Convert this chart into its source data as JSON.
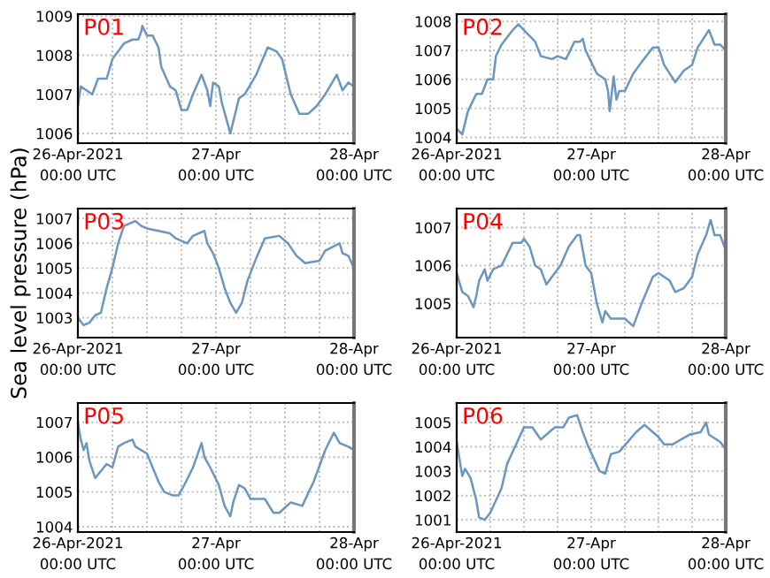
{
  "chart_data": [
    {
      "type": "line",
      "title": "P01",
      "xlim": [
        "2021-04-26T00:00",
        "2021-04-28T00:00"
      ],
      "ylim": [
        1005.75,
        1009.05
      ],
      "yticks": [
        1006,
        1007,
        1008,
        1009
      ],
      "grid": true,
      "xticks": [
        {
          "value": "2021-04-26T00:00",
          "label": "26-Apr-2021\n00:00 UTC"
        },
        {
          "value": "2021-04-26T06:00",
          "label": null
        },
        {
          "value": "2021-04-26T12:00",
          "label": null
        },
        {
          "value": "2021-04-26T18:00",
          "label": null
        },
        {
          "value": "2021-04-27T00:00",
          "label": "27-Apr\n00:00 UTC"
        },
        {
          "value": "2021-04-27T06:00",
          "label": null
        },
        {
          "value": "2021-04-27T12:00",
          "label": null
        },
        {
          "value": "2021-04-27T18:00",
          "label": null
        },
        {
          "value": "2021-04-28T00:00",
          "label": "28-Apr\n00:00 UTC"
        }
      ],
      "series": [
        {
          "color": "#6a96c0",
          "x": [
            "2021-04-26T00:00",
            "2021-04-26T00:30",
            "2021-04-26T01:30",
            "2021-04-26T02:30",
            "2021-04-26T03:30",
            "2021-04-26T05:00",
            "2021-04-26T06:00",
            "2021-04-26T08:00",
            "2021-04-26T09:30",
            "2021-04-26T10:30",
            "2021-04-26T11:00",
            "2021-04-26T11:12",
            "2021-04-26T12:00",
            "2021-04-26T13:00",
            "2021-04-26T14:00",
            "2021-04-26T14:30",
            "2021-04-26T16:00",
            "2021-04-26T17:00",
            "2021-04-26T18:00",
            "2021-04-26T19:00",
            "2021-04-26T20:00",
            "2021-04-26T21:30",
            "2021-04-26T22:30",
            "2021-04-26T23:00",
            "2021-04-26T23:30",
            "2021-04-27T00:30",
            "2021-04-27T01:00",
            "2021-04-27T02:30",
            "2021-04-27T04:00",
            "2021-04-27T05:00",
            "2021-04-27T07:00",
            "2021-04-27T09:00",
            "2021-04-27T10:30",
            "2021-04-27T11:30",
            "2021-04-27T13:00",
            "2021-04-27T14:30",
            "2021-04-27T16:00",
            "2021-04-27T17:30",
            "2021-04-27T19:00",
            "2021-04-27T21:00",
            "2021-04-27T22:00",
            "2021-04-27T23:00",
            "2021-04-28T00:00"
          ],
          "values": [
            1006.7,
            1007.2,
            1007.1,
            1007.0,
            1007.4,
            1007.4,
            1007.9,
            1008.3,
            1008.4,
            1008.4,
            1008.6,
            1008.75,
            1008.5,
            1008.5,
            1008.2,
            1007.7,
            1007.2,
            1007.1,
            1006.6,
            1006.6,
            1007.0,
            1007.5,
            1007.1,
            1006.7,
            1007.3,
            1007.2,
            1006.8,
            1006.0,
            1006.9,
            1007.0,
            1007.5,
            1008.2,
            1008.1,
            1007.9,
            1007.0,
            1006.5,
            1006.5,
            1006.7,
            1007.0,
            1007.5,
            1007.1,
            1007.3,
            1007.2
          ]
        }
      ]
    },
    {
      "type": "line",
      "title": "P02",
      "xlim": [
        "2021-04-26T00:00",
        "2021-04-28T00:00"
      ],
      "ylim": [
        1003.8,
        1008.25
      ],
      "yticks": [
        1004,
        1005,
        1006,
        1007,
        1008
      ],
      "grid": true,
      "xticks": [
        {
          "value": "2021-04-26T00:00",
          "label": "26-Apr-2021\n00:00 UTC"
        },
        {
          "value": "2021-04-26T06:00",
          "label": null
        },
        {
          "value": "2021-04-26T12:00",
          "label": null
        },
        {
          "value": "2021-04-26T18:00",
          "label": null
        },
        {
          "value": "2021-04-27T00:00",
          "label": "27-Apr\n00:00 UTC"
        },
        {
          "value": "2021-04-27T06:00",
          "label": null
        },
        {
          "value": "2021-04-27T12:00",
          "label": null
        },
        {
          "value": "2021-04-27T18:00",
          "label": null
        },
        {
          "value": "2021-04-28T00:00",
          "label": "28-Apr\n00:00 UTC"
        }
      ],
      "series": [
        {
          "color": "#6a96c0",
          "x": [
            "2021-04-26T00:00",
            "2021-04-26T01:00",
            "2021-04-26T02:00",
            "2021-04-26T03:30",
            "2021-04-26T04:30",
            "2021-04-26T05:30",
            "2021-04-26T06:30",
            "2021-04-26T07:00",
            "2021-04-26T08:00",
            "2021-04-26T10:00",
            "2021-04-26T11:00",
            "2021-04-26T12:00",
            "2021-04-26T13:00",
            "2021-04-26T14:00",
            "2021-04-26T15:00",
            "2021-04-26T17:00",
            "2021-04-26T18:00",
            "2021-04-26T19:30",
            "2021-04-26T21:00",
            "2021-04-26T22:00",
            "2021-04-26T22:30",
            "2021-04-26T23:00",
            "2021-04-27T00:00",
            "2021-04-27T01:00",
            "2021-04-27T02:30",
            "2021-04-27T03:00",
            "2021-04-27T03:18",
            "2021-04-27T04:00",
            "2021-04-27T04:30",
            "2021-04-27T05:00",
            "2021-04-27T06:00",
            "2021-04-27T07:30",
            "2021-04-27T09:00",
            "2021-04-27T11:00",
            "2021-04-27T12:00",
            "2021-04-27T13:00",
            "2021-04-27T15:00",
            "2021-04-27T16:30",
            "2021-04-27T18:00",
            "2021-04-27T19:00",
            "2021-04-27T20:00",
            "2021-04-27T21:00",
            "2021-04-27T22:00",
            "2021-04-27T23:00",
            "2021-04-28T00:00"
          ],
          "values": [
            1004.3,
            1004.1,
            1004.9,
            1005.5,
            1005.5,
            1006.0,
            1006.0,
            1006.8,
            1007.2,
            1007.7,
            1007.9,
            1007.7,
            1007.5,
            1007.3,
            1006.8,
            1006.7,
            1006.8,
            1006.7,
            1007.3,
            1007.3,
            1007.4,
            1007.0,
            1006.6,
            1006.2,
            1006.0,
            1005.6,
            1004.9,
            1006.1,
            1005.3,
            1005.6,
            1005.6,
            1006.2,
            1006.6,
            1007.1,
            1007.1,
            1006.5,
            1005.9,
            1006.3,
            1006.5,
            1007.1,
            1007.4,
            1007.7,
            1007.2,
            1007.2,
            1007.0
          ]
        }
      ]
    },
    {
      "type": "line",
      "title": "P03",
      "ylabel": "Sea level pressure (hPa)",
      "xlim": [
        "2021-04-26T00:00",
        "2021-04-28T00:00"
      ],
      "ylim": [
        1002.2,
        1007.4
      ],
      "yticks": [
        1003,
        1004,
        1005,
        1006,
        1007
      ],
      "grid": true,
      "xticks": [
        {
          "value": "2021-04-26T00:00",
          "label": "26-Apr-2021\n00:00 UTC"
        },
        {
          "value": "2021-04-26T06:00",
          "label": null
        },
        {
          "value": "2021-04-26T12:00",
          "label": null
        },
        {
          "value": "2021-04-26T18:00",
          "label": null
        },
        {
          "value": "2021-04-27T00:00",
          "label": "27-Apr\n00:00 UTC"
        },
        {
          "value": "2021-04-27T06:00",
          "label": null
        },
        {
          "value": "2021-04-27T12:00",
          "label": null
        },
        {
          "value": "2021-04-27T18:00",
          "label": null
        },
        {
          "value": "2021-04-28T00:00",
          "label": "28-Apr\n00:00 UTC"
        }
      ],
      "series": [
        {
          "color": "#6a96c0",
          "x": [
            "2021-04-26T00:00",
            "2021-04-26T01:00",
            "2021-04-26T02:00",
            "2021-04-26T03:00",
            "2021-04-26T04:00",
            "2021-04-26T05:00",
            "2021-04-26T06:00",
            "2021-04-26T07:00",
            "2021-04-26T08:00",
            "2021-04-26T09:00",
            "2021-04-26T10:00",
            "2021-04-26T11:00",
            "2021-04-26T12:00",
            "2021-04-26T14:00",
            "2021-04-26T16:00",
            "2021-04-26T17:00",
            "2021-04-26T19:00",
            "2021-04-26T20:00",
            "2021-04-26T22:00",
            "2021-04-26T22:30",
            "2021-04-26T23:30",
            "2021-04-27T00:30",
            "2021-04-27T01:30",
            "2021-04-27T02:30",
            "2021-04-27T03:30",
            "2021-04-27T04:30",
            "2021-04-27T05:30",
            "2021-04-27T07:00",
            "2021-04-27T08:30",
            "2021-04-27T11:00",
            "2021-04-27T12:30",
            "2021-04-27T14:00",
            "2021-04-27T15:30",
            "2021-04-27T18:00",
            "2021-04-27T19:00",
            "2021-04-27T21:30",
            "2021-04-27T22:00",
            "2021-04-27T23:00",
            "2021-04-28T00:00"
          ],
          "values": [
            1003.0,
            1002.7,
            1002.8,
            1003.1,
            1003.2,
            1004.2,
            1005.0,
            1006.0,
            1006.7,
            1006.8,
            1006.9,
            1006.7,
            1006.6,
            1006.5,
            1006.4,
            1006.2,
            1006.0,
            1006.3,
            1006.5,
            1006.0,
            1005.6,
            1005.0,
            1004.2,
            1003.6,
            1003.2,
            1003.6,
            1004.5,
            1005.4,
            1006.2,
            1006.3,
            1006.0,
            1005.5,
            1005.2,
            1005.3,
            1005.7,
            1006.0,
            1005.6,
            1005.5,
            1005.0
          ]
        }
      ]
    },
    {
      "type": "line",
      "title": "P04",
      "xlim": [
        "2021-04-26T00:00",
        "2021-04-28T00:00"
      ],
      "ylim": [
        1004.1,
        1007.5
      ],
      "yticks": [
        1005,
        1006,
        1007
      ],
      "grid": true,
      "xticks": [
        {
          "value": "2021-04-26T00:00",
          "label": "26-Apr-2021\n00:00 UTC"
        },
        {
          "value": "2021-04-26T06:00",
          "label": null
        },
        {
          "value": "2021-04-26T12:00",
          "label": null
        },
        {
          "value": "2021-04-26T18:00",
          "label": null
        },
        {
          "value": "2021-04-27T00:00",
          "label": "27-Apr\n00:00 UTC"
        },
        {
          "value": "2021-04-27T06:00",
          "label": null
        },
        {
          "value": "2021-04-27T12:00",
          "label": null
        },
        {
          "value": "2021-04-27T18:00",
          "label": null
        },
        {
          "value": "2021-04-28T00:00",
          "label": "28-Apr\n00:00 UTC"
        }
      ],
      "series": [
        {
          "color": "#6a96c0",
          "x": [
            "2021-04-26T00:00",
            "2021-04-26T01:00",
            "2021-04-26T02:00",
            "2021-04-26T03:00",
            "2021-04-26T03:30",
            "2021-04-26T04:00",
            "2021-04-26T05:00",
            "2021-04-26T05:30",
            "2021-04-26T06:30",
            "2021-04-26T08:00",
            "2021-04-26T09:00",
            "2021-04-26T10:00",
            "2021-04-26T11:30",
            "2021-04-26T12:00",
            "2021-04-26T13:00",
            "2021-04-26T14:00",
            "2021-04-26T15:00",
            "2021-04-26T16:00",
            "2021-04-26T17:00",
            "2021-04-26T18:30",
            "2021-04-26T20:00",
            "2021-04-26T21:30",
            "2021-04-26T22:00",
            "2021-04-26T23:00",
            "2021-04-27T00:00",
            "2021-04-27T01:00",
            "2021-04-27T02:00",
            "2021-04-27T02:30",
            "2021-04-27T03:30",
            "2021-04-27T04:30",
            "2021-04-27T06:00",
            "2021-04-27T07:30",
            "2021-04-27T09:00",
            "2021-04-27T11:00",
            "2021-04-27T12:00",
            "2021-04-27T14:00",
            "2021-04-27T15:00",
            "2021-04-27T16:30",
            "2021-04-27T18:00",
            "2021-04-27T19:00",
            "2021-04-27T20:30",
            "2021-04-27T21:18",
            "2021-04-27T22:00",
            "2021-04-27T23:00",
            "2021-04-28T00:00"
          ],
          "values": [
            1005.8,
            1005.3,
            1005.2,
            1004.9,
            1005.2,
            1005.6,
            1005.9,
            1005.6,
            1005.9,
            1006.0,
            1006.3,
            1006.6,
            1006.6,
            1006.7,
            1006.5,
            1006.0,
            1005.9,
            1005.5,
            1005.7,
            1006.0,
            1006.5,
            1006.8,
            1006.8,
            1006.0,
            1005.8,
            1005.0,
            1004.5,
            1004.8,
            1004.6,
            1004.6,
            1004.6,
            1004.4,
            1005.0,
            1005.7,
            1005.8,
            1005.6,
            1005.3,
            1005.4,
            1005.7,
            1006.3,
            1006.8,
            1007.2,
            1006.8,
            1006.8,
            1006.4
          ]
        }
      ]
    },
    {
      "type": "line",
      "title": "P05",
      "xlim": [
        "2021-04-26T00:00",
        "2021-04-28T00:00"
      ],
      "ylim": [
        1003.85,
        1007.55
      ],
      "yticks": [
        1004,
        1005,
        1006,
        1007
      ],
      "grid": true,
      "xticks": [
        {
          "value": "2021-04-26T00:00",
          "label": "26-Apr-2021\n00:00 UTC"
        },
        {
          "value": "2021-04-26T06:00",
          "label": null
        },
        {
          "value": "2021-04-26T12:00",
          "label": null
        },
        {
          "value": "2021-04-26T18:00",
          "label": null
        },
        {
          "value": "2021-04-27T00:00",
          "label": "27-Apr\n00:00 UTC"
        },
        {
          "value": "2021-04-27T06:00",
          "label": null
        },
        {
          "value": "2021-04-27T12:00",
          "label": null
        },
        {
          "value": "2021-04-27T18:00",
          "label": null
        },
        {
          "value": "2021-04-28T00:00",
          "label": "28-Apr\n00:00 UTC"
        }
      ],
      "series": [
        {
          "color": "#6a96c0",
          "x": [
            "2021-04-26T00:00",
            "2021-04-26T00:30",
            "2021-04-26T01:00",
            "2021-04-26T01:30",
            "2021-04-26T02:00",
            "2021-04-26T03:00",
            "2021-04-26T04:00",
            "2021-04-26T05:00",
            "2021-04-26T06:00",
            "2021-04-26T07:00",
            "2021-04-26T08:00",
            "2021-04-26T09:30",
            "2021-04-26T10:00",
            "2021-04-26T12:00",
            "2021-04-26T13:00",
            "2021-04-26T14:00",
            "2021-04-26T15:00",
            "2021-04-26T16:30",
            "2021-04-26T17:30",
            "2021-04-26T18:30",
            "2021-04-26T20:00",
            "2021-04-26T21:30",
            "2021-04-26T22:00",
            "2021-04-26T23:00",
            "2021-04-27T00:30",
            "2021-04-27T01:30",
            "2021-04-27T02:30",
            "2021-04-27T03:00",
            "2021-04-27T04:00",
            "2021-04-27T05:00",
            "2021-04-27T06:00",
            "2021-04-27T07:00",
            "2021-04-27T08:30",
            "2021-04-27T10:00",
            "2021-04-27T11:00",
            "2021-04-27T13:00",
            "2021-04-27T15:00",
            "2021-04-27T17:00",
            "2021-04-27T19:00",
            "2021-04-27T20:30",
            "2021-04-27T21:30",
            "2021-04-27T23:00",
            "2021-04-28T00:00"
          ],
          "values": [
            1007.0,
            1006.5,
            1006.2,
            1006.4,
            1005.9,
            1005.4,
            1005.6,
            1005.8,
            1005.7,
            1006.3,
            1006.4,
            1006.5,
            1006.3,
            1006.1,
            1005.7,
            1005.3,
            1005.0,
            1004.9,
            1004.9,
            1005.2,
            1005.7,
            1006.4,
            1006.0,
            1005.7,
            1005.2,
            1004.6,
            1004.3,
            1004.7,
            1005.2,
            1005.1,
            1004.8,
            1004.8,
            1004.8,
            1004.4,
            1004.4,
            1004.7,
            1004.6,
            1005.3,
            1006.2,
            1006.7,
            1006.4,
            1006.3,
            1006.2
          ]
        }
      ]
    },
    {
      "type": "line",
      "title": "P06",
      "xlim": [
        "2021-04-26T00:00",
        "2021-04-28T00:00"
      ],
      "ylim": [
        1000.5,
        1005.8
      ],
      "yticks": [
        1001,
        1002,
        1003,
        1004,
        1005
      ],
      "grid": true,
      "xticks": [
        {
          "value": "2021-04-26T00:00",
          "label": "26-Apr-2021\n00:00 UTC"
        },
        {
          "value": "2021-04-26T06:00",
          "label": null
        },
        {
          "value": "2021-04-26T12:00",
          "label": null
        },
        {
          "value": "2021-04-26T18:00",
          "label": null
        },
        {
          "value": "2021-04-27T00:00",
          "label": "27-Apr\n00:00 UTC"
        },
        {
          "value": "2021-04-27T06:00",
          "label": null
        },
        {
          "value": "2021-04-27T12:00",
          "label": null
        },
        {
          "value": "2021-04-27T18:00",
          "label": null
        },
        {
          "value": "2021-04-28T00:00",
          "label": "28-Apr\n00:00 UTC"
        }
      ],
      "series": [
        {
          "color": "#6a96c0",
          "x": [
            "2021-04-26T00:00",
            "2021-04-26T00:30",
            "2021-04-26T01:00",
            "2021-04-26T01:30",
            "2021-04-26T02:30",
            "2021-04-26T03:30",
            "2021-04-26T04:00",
            "2021-04-26T05:00",
            "2021-04-26T06:00",
            "2021-04-26T07:00",
            "2021-04-26T08:00",
            "2021-04-26T09:00",
            "2021-04-26T10:00",
            "2021-04-26T11:00",
            "2021-04-26T12:00",
            "2021-04-26T13:30",
            "2021-04-26T15:00",
            "2021-04-26T16:00",
            "2021-04-26T17:30",
            "2021-04-26T19:00",
            "2021-04-26T20:00",
            "2021-04-26T21:30",
            "2021-04-26T22:30",
            "2021-04-26T23:30",
            "2021-04-27T00:30",
            "2021-04-27T01:30",
            "2021-04-27T02:30",
            "2021-04-27T03:30",
            "2021-04-27T05:00",
            "2021-04-27T06:30",
            "2021-04-27T08:00",
            "2021-04-27T09:30",
            "2021-04-27T11:00",
            "2021-04-27T12:00",
            "2021-04-27T13:00",
            "2021-04-27T14:30",
            "2021-04-27T16:00",
            "2021-04-27T17:30",
            "2021-04-27T19:30",
            "2021-04-27T20:30",
            "2021-04-27T21:00",
            "2021-04-27T23:00",
            "2021-04-28T00:00"
          ],
          "values": [
            1004.2,
            1003.5,
            1002.8,
            1003.1,
            1002.7,
            1001.8,
            1001.1,
            1001.0,
            1001.3,
            1001.8,
            1002.3,
            1003.3,
            1003.8,
            1004.3,
            1004.8,
            1004.8,
            1004.3,
            1004.5,
            1004.8,
            1004.8,
            1005.2,
            1005.3,
            1004.6,
            1004.0,
            1003.5,
            1003.0,
            1002.9,
            1003.7,
            1003.8,
            1004.2,
            1004.6,
            1004.9,
            1004.6,
            1004.4,
            1004.1,
            1004.1,
            1004.3,
            1004.5,
            1004.6,
            1005.0,
            1004.5,
            1004.2,
            1003.9
          ]
        }
      ]
    }
  ]
}
